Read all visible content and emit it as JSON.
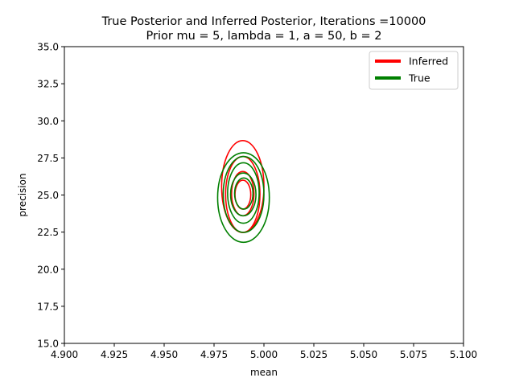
{
  "chart_data": {
    "type": "contour",
    "title": "True Posterior and Inferred Posterior, Iterations =10000",
    "subtitle": "Prior mu = 5, lambda = 1, a = 50, b = 2",
    "xlabel": "mean",
    "ylabel": "precision",
    "xlim": [
      4.9,
      5.1
    ],
    "ylim": [
      15.0,
      35.0
    ],
    "xticks": [
      "4.900",
      "4.925",
      "4.950",
      "4.975",
      "5.000",
      "5.025",
      "5.050",
      "5.075",
      "5.100"
    ],
    "xtick_values": [
      4.9,
      4.925,
      4.95,
      4.975,
      5.0,
      5.025,
      5.05,
      5.075,
      5.1
    ],
    "yticks": [
      "15.0",
      "17.5",
      "20.0",
      "22.5",
      "25.0",
      "27.5",
      "30.0",
      "32.5",
      "35.0"
    ],
    "ytick_values": [
      15.0,
      17.5,
      20.0,
      22.5,
      25.0,
      27.5,
      30.0,
      32.5,
      35.0
    ],
    "grid": false,
    "legend_position": "top-right",
    "series": [
      {
        "name": "Inferred",
        "color": "#ff0000",
        "contours": [
          {
            "xmin": 4.9788,
            "xmax": 5.0,
            "ymin": 22.48,
            "ymax": 28.67
          },
          {
            "xmin": 4.9808,
            "xmax": 4.998,
            "ymin": 22.48,
            "ymax": 27.6
          },
          {
            "xmin": 4.9838,
            "xmax": 4.995,
            "ymin": 23.6,
            "ymax": 26.58
          },
          {
            "xmin": 4.9855,
            "xmax": 4.9934,
            "ymin": 24.05,
            "ymax": 26.0
          }
        ]
      },
      {
        "name": "True",
        "color": "#008000",
        "contours": [
          {
            "xmin": 4.9768,
            "xmax": 5.0027,
            "ymin": 21.81,
            "ymax": 27.85
          },
          {
            "xmin": 4.9796,
            "xmax": 5.0,
            "ymin": 22.48,
            "ymax": 27.6
          },
          {
            "xmin": 4.9818,
            "xmax": 4.9976,
            "ymin": 23.1,
            "ymax": 27.17
          },
          {
            "xmin": 4.9833,
            "xmax": 4.996,
            "ymin": 23.6,
            "ymax": 26.48
          },
          {
            "xmin": 4.9853,
            "xmax": 4.9945,
            "ymin": 24.05,
            "ymax": 26.15
          }
        ]
      }
    ]
  }
}
